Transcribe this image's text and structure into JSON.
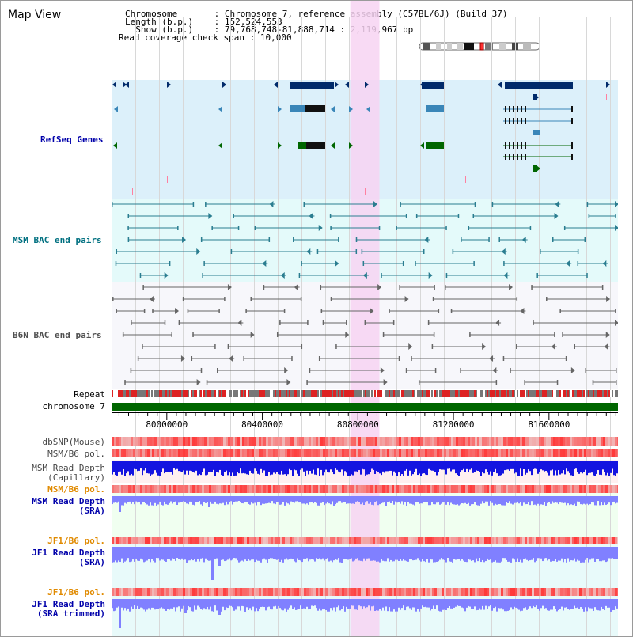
{
  "header": {
    "title": "Map View",
    "info_lines": [
      {
        "label": "Chromosome",
        "value": "Chromosome 7, reference assembly (C57BL/6J) (Build 37)"
      },
      {
        "label": "Length (b.p.)",
        "value": "152,524,553"
      },
      {
        "label": "Show (b.p.)",
        "value": "79,768,748-81,888,714 : 2,119,967 bp"
      },
      {
        "label": "Read coverage check span",
        "value": "10,000"
      }
    ]
  },
  "tracks": {
    "refseq": {
      "label": "RefSeq Genes",
      "color": "#0000aa",
      "bg": "#dcf0fa"
    },
    "msm_bac": {
      "label": "MSM BAC end pairs",
      "color": "#007080",
      "bg": "#e4fafa"
    },
    "b6n_bac": {
      "label": "B6N BAC end pairs",
      "color": "#505050",
      "bg": "#f7f7fb"
    },
    "repeat": {
      "label": "Repeat"
    },
    "chromosome": {
      "label": "chromosome 7",
      "color": "#006600"
    },
    "dbsnp": {
      "label": "dbSNP(Mouse)"
    },
    "msm_b6_pol_1": {
      "label": "MSM/B6 pol."
    },
    "msm_depth_cap": {
      "label1": "MSM Read Depth",
      "label2": "(Capillary)"
    },
    "msm_b6_pol_2": {
      "label": "MSM/B6 pol.",
      "color": "#e08a00"
    },
    "msm_depth_sra": {
      "label1": "MSM Read Depth",
      "label2": "(SRA)",
      "color": "#0000aa"
    },
    "jf1_b6_pol_1": {
      "label": "JF1/B6 pol.",
      "color": "#e08a00"
    },
    "jf1_depth_sra": {
      "label1": "JF1 Read Depth",
      "label2": "(SRA)",
      "color": "#0000aa"
    },
    "jf1_b6_pol_2": {
      "label": "JF1/B6 pol.",
      "color": "#e08a00"
    },
    "jf1_depth_trim": {
      "label1": "JF1 Read Depth",
      "label2": "(SRA trimmed)",
      "color": "#0000aa"
    }
  },
  "ruler": {
    "ticks": [
      {
        "value": 80000000,
        "label": "80000000"
      },
      {
        "value": 80400000,
        "label": "80400000"
      },
      {
        "value": 80800000,
        "label": "80800000"
      },
      {
        "value": 81200000,
        "label": "81200000"
      },
      {
        "value": 81600000,
        "label": "81600000"
      }
    ]
  },
  "view": {
    "start": 79768748,
    "end": 81888714,
    "highlight_start": 80768000,
    "highlight_end": 80890000
  },
  "colors": {
    "highlight": "#f7d4f2",
    "refseq_dark": "#002a6a",
    "refseq_mid": "#3a86b8",
    "refseq_green": "#006600",
    "depth_blue": "#1414e0",
    "depth_light": "#8080ff"
  }
}
